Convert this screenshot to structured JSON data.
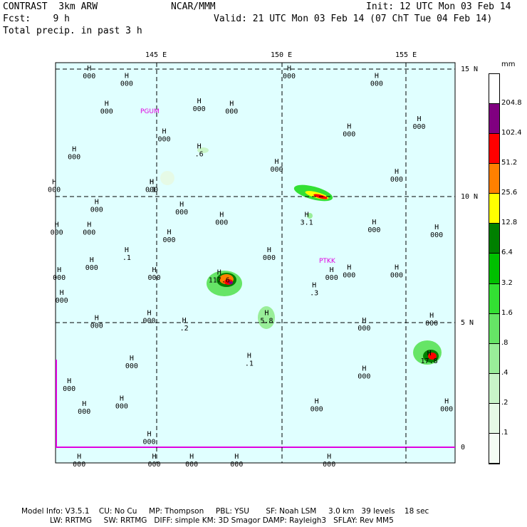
{
  "header": {
    "model": "CONTRAST  3km ARW",
    "center": "NCAR/MMM",
    "init": "Init: 12 UTC Mon 03 Feb 14",
    "fcst": "Fcst:    9 h",
    "valid": "Valid: 21 UTC Mon 03 Feb 14 (07 ChT Tue 04 Feb 14)",
    "field": "Total precip. in past 3 h"
  },
  "axes": {
    "lon_labels": [
      "145 E",
      "150 E",
      "155 E"
    ],
    "lat_labels": [
      "15 N",
      "10 N",
      "5 N",
      "0"
    ]
  },
  "stations": [
    "PGUM",
    "PTKK"
  ],
  "highs": [
    {
      "lon": 142.3,
      "lat": 15.0,
      "v": "000"
    },
    {
      "lon": 143.8,
      "lat": 14.7,
      "v": "000"
    },
    {
      "lon": 150.3,
      "lat": 15.0,
      "v": "000"
    },
    {
      "lon": 153.8,
      "lat": 14.7,
      "v": "000"
    },
    {
      "lon": 143.0,
      "lat": 13.6,
      "v": "000"
    },
    {
      "lon": 146.7,
      "lat": 13.7,
      "v": "000"
    },
    {
      "lon": 148.0,
      "lat": 13.6,
      "v": "000"
    },
    {
      "lon": 145.3,
      "lat": 12.5,
      "v": "000"
    },
    {
      "lon": 152.7,
      "lat": 12.7,
      "v": "000"
    },
    {
      "lon": 155.5,
      "lat": 13.0,
      "v": "000"
    },
    {
      "lon": 141.7,
      "lat": 11.8,
      "v": "000"
    },
    {
      "lon": 149.8,
      "lat": 11.3,
      "v": "000"
    },
    {
      "lon": 154.6,
      "lat": 10.9,
      "v": "000"
    },
    {
      "lon": 140.9,
      "lat": 10.5,
      "v": "000"
    },
    {
      "lon": 144.8,
      "lat": 10.5,
      "v": "000"
    },
    {
      "lon": 142.6,
      "lat": 9.7,
      "v": "000"
    },
    {
      "lon": 146.0,
      "lat": 9.6,
      "v": "000"
    },
    {
      "lon": 147.6,
      "lat": 9.2,
      "v": "000"
    },
    {
      "lon": 141.0,
      "lat": 8.8,
      "v": "000"
    },
    {
      "lon": 142.3,
      "lat": 8.8,
      "v": "000"
    },
    {
      "lon": 145.5,
      "lat": 8.5,
      "v": "000"
    },
    {
      "lon": 153.7,
      "lat": 8.9,
      "v": "000"
    },
    {
      "lon": 156.2,
      "lat": 8.7,
      "v": "000"
    },
    {
      "lon": 149.5,
      "lat": 7.8,
      "v": "000"
    },
    {
      "lon": 142.4,
      "lat": 7.4,
      "v": "000"
    },
    {
      "lon": 144.9,
      "lat": 7.0,
      "v": "000"
    },
    {
      "lon": 152.0,
      "lat": 7.0,
      "v": "000"
    },
    {
      "lon": 154.6,
      "lat": 7.1,
      "v": "000"
    },
    {
      "lon": 141.1,
      "lat": 7.0,
      "v": "000"
    },
    {
      "lon": 141.2,
      "lat": 6.1,
      "v": "000"
    },
    {
      "lon": 142.6,
      "lat": 5.1,
      "v": "000"
    },
    {
      "lon": 144.7,
      "lat": 5.3,
      "v": "000"
    },
    {
      "lon": 153.3,
      "lat": 5.0,
      "v": "000"
    },
    {
      "lon": 156.0,
      "lat": 5.2,
      "v": "000"
    },
    {
      "lon": 144.0,
      "lat": 3.5,
      "v": "000"
    },
    {
      "lon": 141.5,
      "lat": 2.6,
      "v": "000"
    },
    {
      "lon": 153.3,
      "lat": 3.1,
      "v": "000"
    },
    {
      "lon": 143.6,
      "lat": 1.9,
      "v": "000"
    },
    {
      "lon": 142.1,
      "lat": 1.7,
      "v": "000"
    },
    {
      "lon": 151.4,
      "lat": 1.8,
      "v": "000"
    },
    {
      "lon": 156.6,
      "lat": 1.8,
      "v": "000"
    },
    {
      "lon": 144.7,
      "lat": 0.5,
      "v": "000"
    },
    {
      "lon": 141.9,
      "lat": -0.4,
      "v": "000"
    },
    {
      "lon": 144.9,
      "lat": -0.4,
      "v": "000"
    },
    {
      "lon": 146.4,
      "lat": -0.4,
      "v": "000"
    },
    {
      "lon": 148.2,
      "lat": -0.4,
      "v": "000"
    },
    {
      "lon": 151.9,
      "lat": -0.4,
      "v": "000"
    },
    {
      "lon": 146.7,
      "lat": 11.9,
      "v": ".6"
    },
    {
      "lon": 144.8,
      "lat": 10.5,
      "v": ".1"
    },
    {
      "lon": 151.0,
      "lat": 9.2,
      "v": "3.1"
    },
    {
      "lon": 143.8,
      "lat": 7.8,
      "v": ".1"
    },
    {
      "lon": 147.5,
      "lat": 6.9,
      "v": "117.6"
    },
    {
      "lon": 151.3,
      "lat": 6.4,
      "v": ".3"
    },
    {
      "lon": 149.4,
      "lat": 5.3,
      "v": "5.8"
    },
    {
      "lon": 146.1,
      "lat": 5.0,
      "v": ".2"
    },
    {
      "lon": 148.7,
      "lat": 3.6,
      "v": ".1"
    },
    {
      "lon": 155.9,
      "lat": 3.7,
      "v": "17.8"
    },
    {
      "lon": 152.7,
      "lat": 7.1,
      "v": "000"
    }
  ],
  "colorbar": {
    "unit": "mm",
    "labels": [
      "204.8",
      "102.4",
      "51.2",
      "25.6",
      "12.8",
      "6.4",
      "3.2",
      "1.6",
      ".8",
      ".4",
      ".2",
      ".1"
    ],
    "colors": [
      "#ffffff",
      "#800080",
      "#ff0000",
      "#ff8000",
      "#ffff00",
      "#008000",
      "#00c000",
      "#33e033",
      "#66e566",
      "#99ee99",
      "#c8f5c8",
      "#e6fae6",
      "#f5fdf5"
    ]
  },
  "footer": {
    "line1": "Model Info: V3.5.1    CU: No Cu     MP: Thompson     PBL: YSU       SF: Noah LSM     3.0 km   39 levels    18 sec",
    "line2": "LW: RRTMG     SW: RRTMG   DIFF: simple KM: 3D Smagor DAMP: Rayleigh3   SFLAY: Rev MM5"
  }
}
